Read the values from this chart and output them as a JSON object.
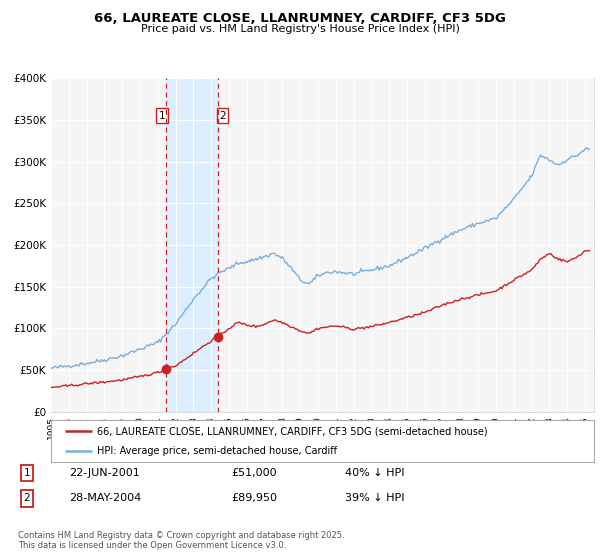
{
  "title": "66, LAUREATE CLOSE, LLANRUMNEY, CARDIFF, CF3 5DG",
  "subtitle": "Price paid vs. HM Land Registry's House Price Index (HPI)",
  "legend_line1": "66, LAUREATE CLOSE, LLANRUMNEY, CARDIFF, CF3 5DG (semi-detached house)",
  "legend_line2": "HPI: Average price, semi-detached house, Cardiff",
  "transaction1_label": "1",
  "transaction1_date": "22-JUN-2001",
  "transaction1_price": "£51,000",
  "transaction1_hpi": "40% ↓ HPI",
  "transaction1_x": 2001.47,
  "transaction1_y": 51000,
  "transaction2_label": "2",
  "transaction2_date": "28-MAY-2004",
  "transaction2_price": "£89,950",
  "transaction2_hpi": "39% ↓ HPI",
  "transaction2_x": 2004.38,
  "transaction2_y": 89950,
  "background_color": "#ffffff",
  "plot_bg_color": "#f5f5f5",
  "hpi_color": "#7aaedb",
  "price_color": "#cc2222",
  "highlight_color": "#ddeeff",
  "vline_color": "#cc2222",
  "grid_color": "#ffffff",
  "footer_text": "Contains HM Land Registry data © Crown copyright and database right 2025.\nThis data is licensed under the Open Government Licence v3.0.",
  "ylim": [
    0,
    400000
  ],
  "xlim_start": 1995.0,
  "xlim_end": 2025.5,
  "yticks": [
    0,
    50000,
    100000,
    150000,
    200000,
    250000,
    300000,
    350000,
    400000
  ],
  "ytick_labels": [
    "£0",
    "£50K",
    "£100K",
    "£150K",
    "£200K",
    "£250K",
    "£300K",
    "£350K",
    "£400K"
  ],
  "xtick_years": [
    1995,
    1996,
    1997,
    1998,
    1999,
    2000,
    2001,
    2002,
    2003,
    2004,
    2005,
    2006,
    2007,
    2008,
    2009,
    2010,
    2011,
    2012,
    2013,
    2014,
    2015,
    2016,
    2017,
    2018,
    2019,
    2020,
    2021,
    2022,
    2023,
    2024,
    2025
  ]
}
